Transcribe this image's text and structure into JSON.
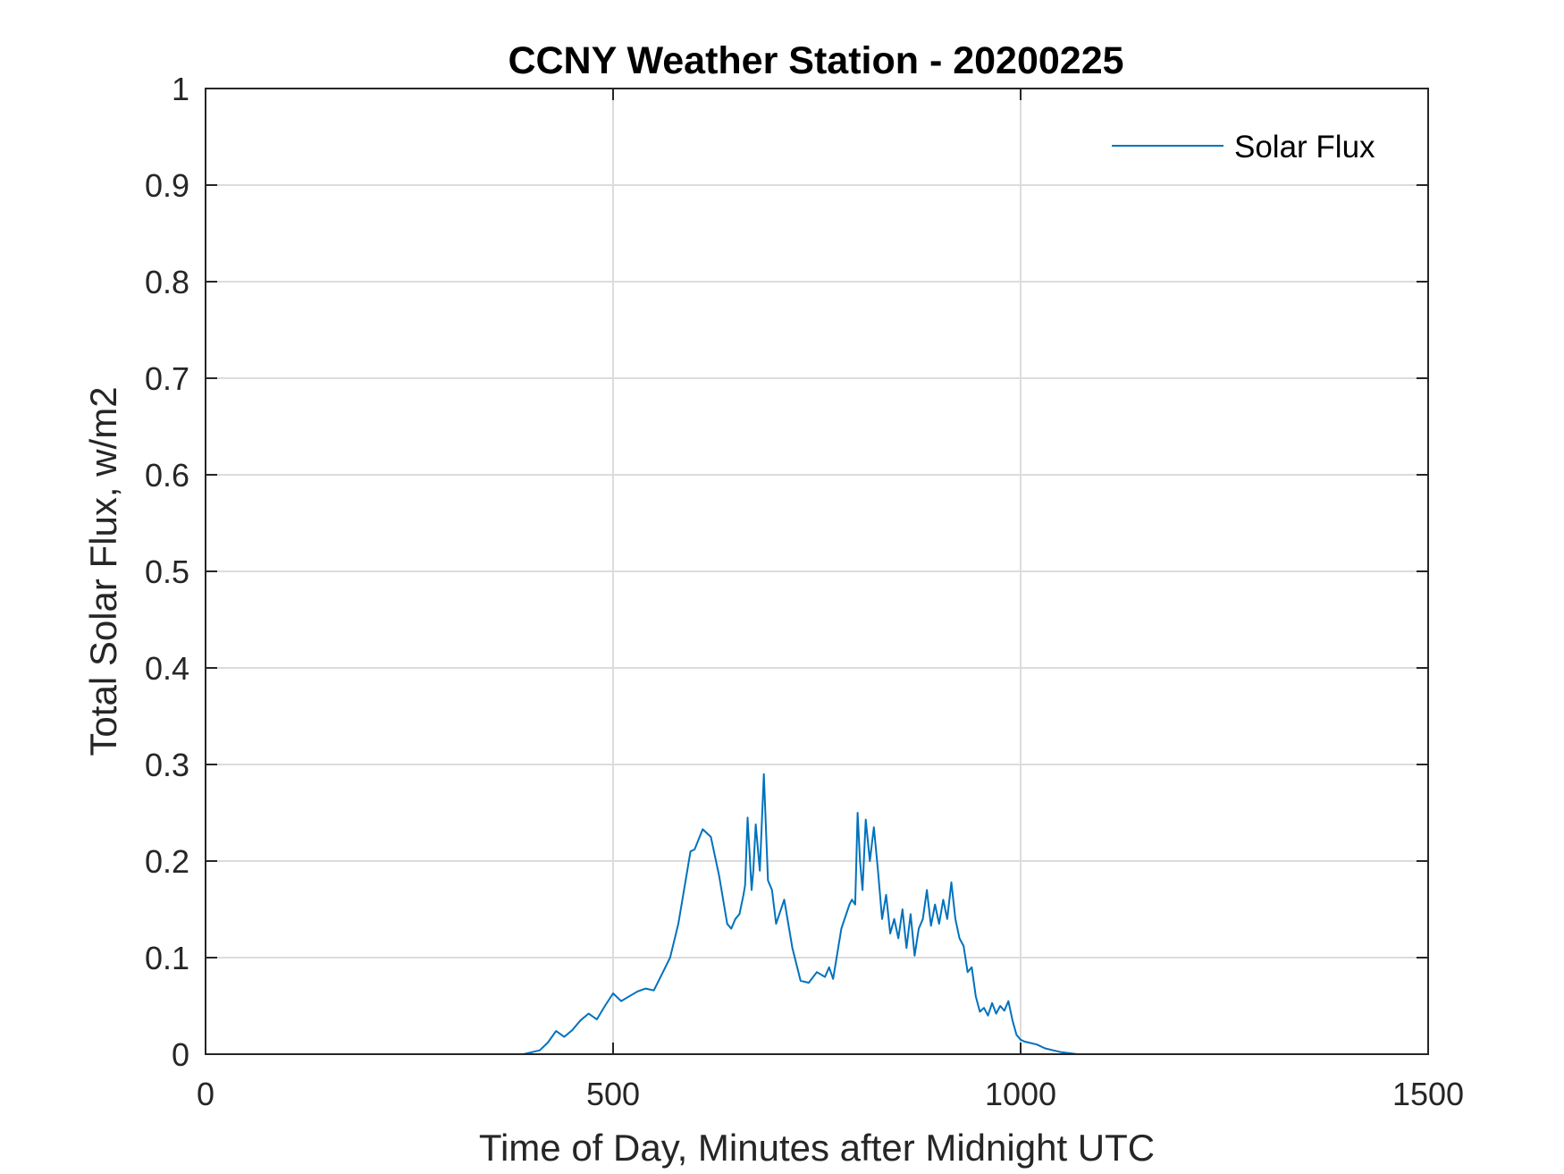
{
  "chart_data": {
    "type": "line",
    "title": "CCNY Weather Station - 20200225",
    "xlabel": "Time of Day, Minutes after Midnight UTC",
    "ylabel": "Total Solar Flux, w/m2",
    "xlim": [
      0,
      1500
    ],
    "ylim": [
      0,
      1
    ],
    "xticks": [
      0,
      500,
      1000,
      1500
    ],
    "xtick_labels": [
      "0",
      "500",
      "1000",
      "1500"
    ],
    "yticks": [
      0,
      0.1,
      0.2,
      0.3,
      0.4,
      0.5,
      0.6,
      0.7,
      0.8,
      0.9,
      1
    ],
    "ytick_labels": [
      "0",
      "0.1",
      "0.2",
      "0.3",
      "0.4",
      "0.5",
      "0.6",
      "0.7",
      "0.8",
      "0.9",
      "1"
    ],
    "grid": true,
    "legend_position": "top-right",
    "series": [
      {
        "name": "Solar Flux",
        "color": "#0072BD",
        "x": [
          0,
          100,
          200,
          300,
          390,
          400,
          410,
          420,
          430,
          440,
          450,
          460,
          470,
          480,
          490,
          500,
          510,
          520,
          530,
          540,
          550,
          560,
          570,
          580,
          590,
          595,
          600,
          610,
          620,
          630,
          640,
          645,
          650,
          655,
          660,
          662,
          665,
          668,
          670,
          672,
          675,
          680,
          685,
          690,
          695,
          700,
          710,
          720,
          730,
          740,
          750,
          760,
          765,
          770,
          780,
          790,
          793,
          797,
          800,
          803,
          806,
          810,
          815,
          820,
          825,
          830,
          835,
          840,
          845,
          850,
          855,
          860,
          865,
          870,
          875,
          880,
          885,
          890,
          895,
          900,
          905,
          910,
          915,
          920,
          925,
          930,
          935,
          940,
          945,
          950,
          955,
          960,
          965,
          970,
          975,
          980,
          985,
          990,
          995,
          1000,
          1005,
          1010,
          1020,
          1030,
          1040,
          1050,
          1060,
          1070,
          1100,
          1200,
          1300,
          1400,
          1445
        ],
        "y": [
          0,
          0,
          0,
          0,
          0,
          0.002,
          0.004,
          0.012,
          0.024,
          0.018,
          0.025,
          0.035,
          0.042,
          0.036,
          0.05,
          0.063,
          0.055,
          0.06,
          0.065,
          0.068,
          0.066,
          0.083,
          0.1,
          0.135,
          0.185,
          0.21,
          0.212,
          0.233,
          0.225,
          0.185,
          0.135,
          0.13,
          0.14,
          0.145,
          0.165,
          0.175,
          0.245,
          0.2,
          0.17,
          0.19,
          0.238,
          0.19,
          0.29,
          0.18,
          0.17,
          0.135,
          0.16,
          0.11,
          0.076,
          0.074,
          0.085,
          0.08,
          0.09,
          0.078,
          0.13,
          0.155,
          0.16,
          0.155,
          0.25,
          0.2,
          0.17,
          0.243,
          0.2,
          0.235,
          0.19,
          0.14,
          0.165,
          0.125,
          0.14,
          0.12,
          0.15,
          0.11,
          0.145,
          0.102,
          0.13,
          0.14,
          0.17,
          0.133,
          0.155,
          0.135,
          0.16,
          0.14,
          0.178,
          0.14,
          0.12,
          0.112,
          0.085,
          0.09,
          0.06,
          0.044,
          0.048,
          0.04,
          0.053,
          0.042,
          0.05,
          0.045,
          0.055,
          0.035,
          0.02,
          0.015,
          0.013,
          0.012,
          0.01,
          0.006,
          0.004,
          0.002,
          0.001,
          0,
          0,
          0,
          0,
          0,
          0
        ]
      }
    ]
  }
}
